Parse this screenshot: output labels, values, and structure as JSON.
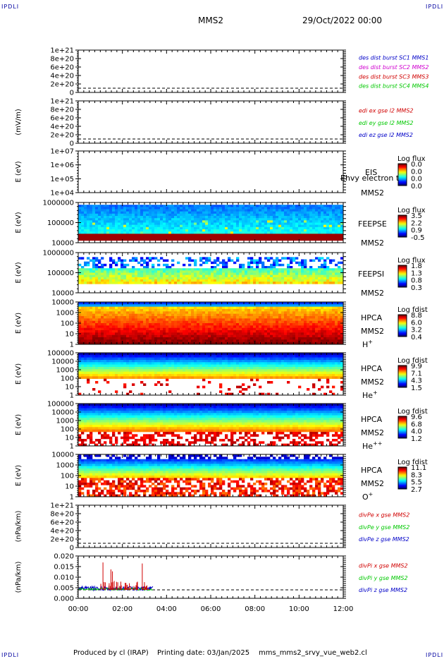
{
  "header": {
    "corner_label": "IPDLI",
    "spacecraft": "MMS2",
    "datetime": "29/Oct/2022 00:00"
  },
  "footer": {
    "producer": "Produced by cl (IRAP)",
    "print_date": "Printing date: 03/Jan/2025",
    "product": "mms_mms2_srvy_vue_web2.cl"
  },
  "colors": {
    "red": "#d00000",
    "magenta": "#d000d0",
    "green": "#00c800",
    "blue": "#0000c8"
  },
  "chart_data": [
    {
      "type": "line",
      "id": "des",
      "ylabel": "",
      "yticks": [
        "1e+21",
        "8e+20",
        "6e+20",
        "4e+20",
        "2e+20",
        "0"
      ],
      "legend": [
        {
          "text": "des dist burst SC1 MMS1",
          "color": "#0000c8"
        },
        {
          "text": "des dist burst SC2 MMS2",
          "color": "#d000d0"
        },
        {
          "text": "des dist burst SC3 MMS3",
          "color": "#d00000"
        },
        {
          "text": "des dist burst SC4 MMS4",
          "color": "#00c800"
        }
      ]
    },
    {
      "type": "line",
      "id": "edi",
      "ylabel": "(mV/m)",
      "yticks": [
        "1e+21",
        "8e+20",
        "6e+20",
        "4e+20",
        "2e+20",
        "0"
      ],
      "legend": [
        {
          "text": "edi ex gse l2 MMS2",
          "color": "#d00000"
        },
        {
          "text": "edi ey gse l2 MMS2",
          "color": "#00c800"
        },
        {
          "text": "edi ez gse l2 MMS2",
          "color": "#0000c8"
        }
      ]
    },
    {
      "type": "heatmap",
      "id": "eis",
      "ylabel": "E (eV)",
      "yticks": [
        "1e+07",
        "1e+06",
        "1e+05",
        "1e+04"
      ],
      "instrument": [
        "EIS",
        "MMS2"
      ],
      "overlay_text": "Ehvy electron to",
      "colorbar": {
        "title": "Log flux",
        "ticks": [
          "0.0",
          "0.0",
          "0.0",
          "0.0"
        ]
      },
      "fill": "none"
    },
    {
      "type": "heatmap",
      "id": "feepse",
      "ylabel": "E (eV)",
      "yticks": [
        "1000000",
        "100000",
        "10000"
      ],
      "instrument": [
        "FEEPSE",
        "MMS2"
      ],
      "colorbar": {
        "title": "Log flux",
        "ticks": [
          "3.5",
          "2.2",
          "0.9",
          "-0.5"
        ]
      },
      "fill": "feeps_e"
    },
    {
      "type": "heatmap",
      "id": "feepsi",
      "ylabel": "E (eV)",
      "yticks": [
        "1000000",
        "100000",
        "10000"
      ],
      "instrument": [
        "FEEPSI",
        "MMS2"
      ],
      "colorbar": {
        "title": "Log flux",
        "ticks": [
          "1.8",
          "1.3",
          "0.8",
          "0.3"
        ]
      },
      "fill": "feeps_i"
    },
    {
      "type": "heatmap",
      "id": "hpca-h",
      "ylabel": "E (eV)",
      "yticks": [
        "10000",
        "1000",
        "100",
        "10",
        "1"
      ],
      "instrument": [
        "HPCA",
        "MMS2"
      ],
      "species": {
        "base": "H",
        "sup": "+"
      },
      "colorbar": {
        "title": "Log fdist",
        "ticks": [
          "8.8",
          "6.0",
          "3.2",
          "0.4"
        ]
      },
      "fill": "hpca_h"
    },
    {
      "type": "heatmap",
      "id": "hpca-he",
      "ylabel": "E (eV)",
      "yticks": [
        "100000",
        "10000",
        "1000",
        "100",
        "10",
        "1"
      ],
      "instrument": [
        "HPCA",
        "MMS2"
      ],
      "species": {
        "base": "He",
        "sup": "+"
      },
      "colorbar": {
        "title": "Log fdist",
        "ticks": [
          "9.9",
          "7.1",
          "4.3",
          "1.5"
        ]
      },
      "fill": "hpca_he"
    },
    {
      "type": "heatmap",
      "id": "hpca-hepp",
      "ylabel": "E (eV)",
      "yticks": [
        "100000",
        "10000",
        "1000",
        "100",
        "10",
        "1"
      ],
      "instrument": [
        "HPCA",
        "MMS2"
      ],
      "species": {
        "base": "He",
        "sup": "++"
      },
      "colorbar": {
        "title": "Log fdist",
        "ticks": [
          "9.6",
          "6.8",
          "4.0",
          "1.2"
        ]
      },
      "fill": "hpca_hepp"
    },
    {
      "type": "heatmap",
      "id": "hpca-o",
      "ylabel": "E (eV)",
      "yticks": [
        "10000",
        "1000",
        "100",
        "10",
        "1"
      ],
      "instrument": [
        "HPCA",
        "MMS2"
      ],
      "species": {
        "base": "O",
        "sup": "+"
      },
      "colorbar": {
        "title": "Log fdist",
        "ticks": [
          "11.1",
          "8.3",
          "5.5",
          "2.7"
        ]
      },
      "fill": "hpca_o"
    },
    {
      "type": "line",
      "id": "divpe",
      "ylabel": "(nPa/km)",
      "yticks": [
        "1e+21",
        "8e+20",
        "6e+20",
        "4e+20",
        "2e+20",
        "0"
      ],
      "legend": [
        {
          "text": "divPe x gse MMS2",
          "color": "#d00000"
        },
        {
          "text": "divPe y gse MMS2",
          "color": "#00c800"
        },
        {
          "text": "divPe z gse MMS2",
          "color": "#0000c8"
        }
      ]
    },
    {
      "type": "line",
      "id": "divpi",
      "ylabel": "(nPa/km)",
      "yticks": [
        "0.020",
        "0.015",
        "0.010",
        "0.005",
        "0.000"
      ],
      "ylim": [
        0,
        0.02
      ],
      "data_end_hour": 3.4,
      "spikes": [
        {
          "x": 1.12,
          "y": 0.0185
        },
        {
          "x": 1.48,
          "y": 0.0138
        },
        {
          "x": 1.55,
          "y": 0.0125
        },
        {
          "x": 1.63,
          "y": 0.006
        },
        {
          "x": 2.9,
          "y": 0.0178
        },
        {
          "x": 3.0,
          "y": 0.004
        }
      ],
      "legend": [
        {
          "text": "divPi x gse MMS2",
          "color": "#d00000"
        },
        {
          "text": "divPi y gse MMS2",
          "color": "#00c800"
        },
        {
          "text": "divPi z gse MMS2",
          "color": "#0000c8"
        }
      ]
    }
  ],
  "x_axis": {
    "ticks": [
      "00:00",
      "02:00",
      "04:00",
      "06:00",
      "08:00",
      "10:00",
      "12:00"
    ],
    "xlim_hours": [
      0,
      12
    ]
  }
}
